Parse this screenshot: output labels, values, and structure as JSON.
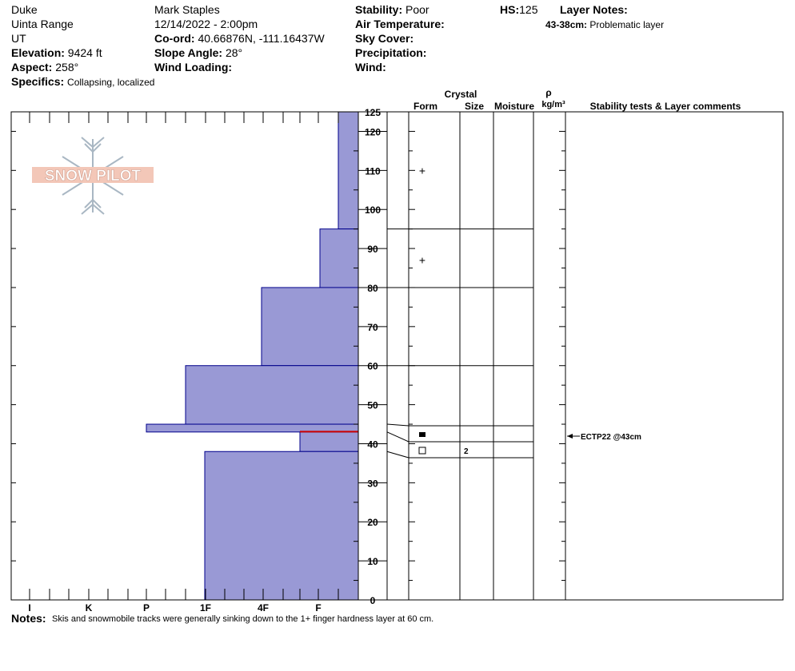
{
  "header": {
    "location": "Duke",
    "range": "Uinta Range",
    "state": "UT",
    "observer": "Mark Staples",
    "datetime": "12/14/2022 - 2:00pm",
    "elevation_label": "Elevation:",
    "elevation": "9424 ft",
    "aspect_label": "Aspect:",
    "aspect": "258°",
    "coord_label": "Co-ord:",
    "coord": "40.66876N, -111.16437W",
    "slope_label": "Slope Angle:",
    "slope": "28°",
    "wind_loading_label": "Wind Loading:",
    "wind_loading": "",
    "stability_label": "Stability:",
    "stability": "Poor",
    "air_temp_label": "Air Temperature:",
    "air_temp": "",
    "sky_label": "Sky Cover:",
    "sky": "",
    "precip_label": "Precipitation:",
    "precip": "",
    "wind_label": "Wind:",
    "wind": "",
    "hs_label": "HS:",
    "hs": "125",
    "layer_notes_label": "Layer Notes:",
    "layer_note_range": "43-38cm:",
    "layer_note_text": "Problematic layer",
    "specifics_label": "Specifics:",
    "specifics": "Collapsing, localized"
  },
  "columns": {
    "crystal": "Crystal",
    "form": "Form",
    "size": "Size",
    "moisture": "Moisture",
    "rho": "ρ",
    "density_unit": "kg/m³",
    "stability": "Stability tests & Layer comments"
  },
  "logo_text": "SNOW PILOT",
  "notes_label": "Notes:",
  "notes": "Skis and snowmobile tracks were generally sinking down to the 1+ finger hardness layer at 60 cm.",
  "colors": {
    "fill": "#9999d5",
    "stroke": "#00008b",
    "marker": "#cc0000",
    "logo": "#f3c7b8",
    "logo_stroke": "#a9b7c3"
  },
  "chart_data": {
    "type": "bar",
    "orientation": "horizontal",
    "hardness_scale": [
      "I",
      "K",
      "P",
      "1F",
      "4F",
      "F"
    ],
    "depth_ticks": [
      0,
      10,
      20,
      30,
      40,
      50,
      60,
      70,
      80,
      90,
      100,
      110,
      120,
      125
    ],
    "ylim": [
      0,
      125
    ],
    "layers": [
      {
        "top": 125,
        "bottom": 95,
        "hardness": "F-"
      },
      {
        "top": 95,
        "bottom": 80,
        "hardness": "F+"
      },
      {
        "top": 80,
        "bottom": 60,
        "hardness": "4F"
      },
      {
        "top": 60,
        "bottom": 45,
        "hardness": "1F+"
      },
      {
        "top": 45,
        "bottom": 43,
        "hardness": "P"
      },
      {
        "top": 43,
        "bottom": 38,
        "hardness": "4F-"
      },
      {
        "top": 38,
        "bottom": 0,
        "hardness": "1F-"
      }
    ],
    "marker_depth": 43,
    "crystal_form_symbols": [
      {
        "depth": 110,
        "symbol": "+"
      },
      {
        "depth": 87,
        "symbol": "+"
      }
    ],
    "test_result": {
      "label": "ECTP22 @43cm",
      "depth": 43
    },
    "size_label": "2"
  }
}
